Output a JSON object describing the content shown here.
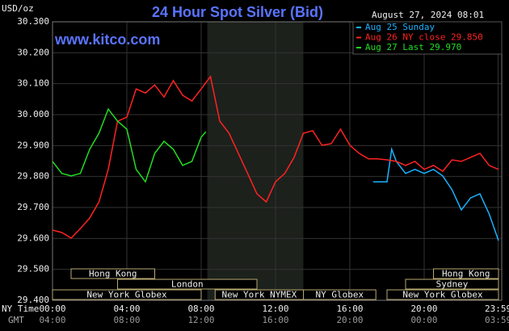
{
  "chart_data": {
    "type": "line",
    "title": "24 Hour Spot Silver (Bid)",
    "timestamp": "August 27, 2024 08:01",
    "watermark": "www.kitco.com",
    "y_label": "USD/oz",
    "x_row_labels": [
      "NY Time",
      "GMT"
    ],
    "xlim": [
      0,
      24
    ],
    "ylim": [
      29.4,
      30.3
    ],
    "yticks": [
      {
        "value": 29.4,
        "label": "29.400"
      },
      {
        "value": 29.5,
        "label": "29.500"
      },
      {
        "value": 29.6,
        "label": "29.600"
      },
      {
        "value": 29.7,
        "label": "29.700"
      },
      {
        "value": 29.8,
        "label": "29.800"
      },
      {
        "value": 29.9,
        "label": "29.900"
      },
      {
        "value": 30.0,
        "label": "30.000"
      },
      {
        "value": 30.1,
        "label": "30.100"
      },
      {
        "value": 30.2,
        "label": "30.200"
      },
      {
        "value": 30.3,
        "label": "30.300"
      }
    ],
    "xticks": [
      {
        "value": 0,
        "label": "00:00"
      },
      {
        "value": 4,
        "label": "04:00"
      },
      {
        "value": 8,
        "label": "08:00"
      },
      {
        "value": 12,
        "label": "12:00"
      },
      {
        "value": 16,
        "label": "16:00"
      },
      {
        "value": 20,
        "label": "20:00"
      },
      {
        "value": 23.98,
        "label": "23:59"
      }
    ],
    "gmt_labels": [
      "04:00",
      "08:00",
      "12:00",
      "16:00",
      "20:00",
      "00:00",
      "03:59"
    ],
    "grid": true,
    "shaded_range": [
      8.33,
      13.5
    ],
    "sessions": [
      {
        "name": "Hong Kong",
        "start": 1,
        "end": 5.5
      },
      {
        "name": "London",
        "start": 3.5,
        "end": 11
      },
      {
        "name": "New York Globex",
        "start": 0,
        "end": 8
      },
      {
        "name": "New York NYMEX",
        "start": 8.75,
        "end": 13.5
      },
      {
        "name": "NY Globex",
        "start": 13.5,
        "end": 17.4
      },
      {
        "name": "Hong Kong",
        "start": 20.5,
        "end": 24
      },
      {
        "name": "Sydney",
        "start": 19,
        "end": 24
      },
      {
        "name": "New York Globex",
        "start": 18,
        "end": 24
      }
    ],
    "series": [
      {
        "name": "Aug 25 Sunday",
        "color": "#1ab2ff",
        "x": [
          17.25,
          18,
          18.25,
          18.5,
          19,
          19.5,
          20,
          20.5,
          21,
          21.5,
          22,
          22.5,
          23,
          23.5,
          24
        ],
        "values": [
          29.783,
          29.783,
          29.888,
          29.849,
          29.81,
          29.823,
          29.81,
          29.823,
          29.802,
          29.757,
          29.692,
          29.731,
          29.744,
          29.679,
          29.593
        ]
      },
      {
        "name": "Aug 26 NY close 29.850",
        "color": "#ff2222",
        "x": [
          0,
          0.5,
          1,
          1.5,
          2,
          2.5,
          3,
          3.5,
          4,
          4.5,
          5,
          5.5,
          6,
          6.5,
          7,
          7.5,
          8,
          8.5,
          9,
          9.5,
          10,
          10.5,
          11,
          11.5,
          12,
          12.5,
          13,
          13.5,
          14,
          14.5,
          15,
          15.5,
          16,
          16.5,
          17,
          17.5,
          18,
          18.5,
          19,
          19.5,
          20,
          20.5,
          21,
          21.5,
          22,
          22.5,
          23,
          23.5,
          24
        ],
        "values": [
          29.627,
          29.619,
          29.601,
          29.632,
          29.666,
          29.718,
          29.823,
          29.979,
          29.992,
          30.083,
          30.07,
          30.096,
          30.057,
          30.11,
          30.063,
          30.044,
          30.083,
          30.123,
          29.979,
          29.94,
          29.875,
          29.81,
          29.744,
          29.718,
          29.783,
          29.81,
          29.862,
          29.94,
          29.948,
          29.901,
          29.906,
          29.953,
          29.901,
          29.875,
          29.857,
          29.857,
          29.854,
          29.849,
          29.836,
          29.849,
          29.823,
          29.836,
          29.817,
          29.854,
          29.849,
          29.862,
          29.875,
          29.836,
          29.823
        ]
      },
      {
        "name": "Aug 27 Last 29.970",
        "color": "#22dd22",
        "x": [
          0,
          0.5,
          1,
          1.5,
          2,
          2.5,
          3,
          3.5,
          4,
          4.5,
          5,
          5.5,
          6,
          6.5,
          7,
          7.5,
          8,
          8.25
        ],
        "values": [
          29.849,
          29.81,
          29.802,
          29.81,
          29.888,
          29.94,
          30.018,
          29.979,
          29.953,
          29.823,
          29.783,
          29.875,
          29.914,
          29.888,
          29.836,
          29.849,
          29.927,
          29.945
        ]
      }
    ]
  }
}
